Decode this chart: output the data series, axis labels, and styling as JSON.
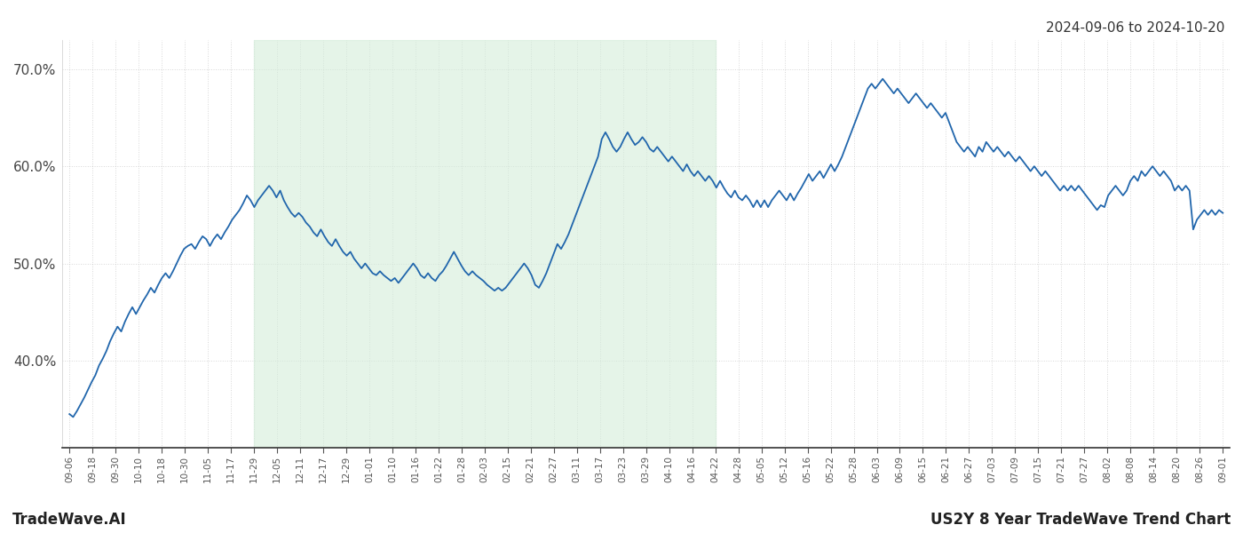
{
  "title_top_right": "2024-09-06 to 2024-10-20",
  "title_bottom_left": "TradeWave.AI",
  "title_bottom_right": "US2Y 8 Year TradeWave Trend Chart",
  "line_color": "#2166ac",
  "line_width": 1.3,
  "highlight_color": "#d4edda",
  "highlight_alpha": 0.6,
  "highlight_x_start": 8,
  "highlight_x_end": 28,
  "background_color": "#ffffff",
  "grid_color": "#b0b0b0",
  "grid_alpha": 0.5,
  "grid_linestyle": ":",
  "ylim": [
    31,
    73
  ],
  "ytick_labels": [
    "40.0%",
    "50.0%",
    "60.0%",
    "70.0%"
  ],
  "ytick_values": [
    40,
    50,
    60,
    70
  ],
  "x_labels": [
    "09-06",
    "09-18",
    "09-30",
    "10-10",
    "10-18",
    "10-30",
    "11-05",
    "11-17",
    "11-29",
    "12-05",
    "12-11",
    "12-17",
    "12-29",
    "01-01",
    "01-10",
    "01-16",
    "01-22",
    "01-28",
    "02-03",
    "02-15",
    "02-21",
    "02-27",
    "03-11",
    "03-17",
    "03-23",
    "03-29",
    "04-10",
    "04-16",
    "04-22",
    "04-28",
    "05-05",
    "05-12",
    "05-16",
    "05-22",
    "05-28",
    "06-03",
    "06-09",
    "06-15",
    "06-21",
    "06-27",
    "07-03",
    "07-09",
    "07-15",
    "07-21",
    "07-27",
    "08-02",
    "08-08",
    "08-14",
    "08-20",
    "08-26",
    "09-01"
  ],
  "x_tick_indices": [
    0,
    1,
    2,
    3,
    4,
    5,
    6,
    7,
    8,
    9,
    10,
    11,
    12,
    13,
    14,
    15,
    16,
    17,
    18,
    19,
    20,
    21,
    22,
    23,
    24,
    25,
    26,
    27,
    28,
    29,
    30,
    31,
    32,
    33,
    34,
    35,
    36,
    37,
    38,
    39,
    40,
    41,
    42,
    43,
    44,
    45,
    46,
    47,
    48,
    49,
    50
  ],
  "y_values": [
    34.5,
    34.2,
    34.8,
    35.5,
    36.2,
    37.0,
    37.8,
    38.5,
    39.5,
    40.2,
    41.0,
    42.0,
    42.8,
    43.5,
    43.0,
    44.0,
    44.8,
    45.5,
    44.8,
    45.5,
    46.2,
    46.8,
    47.5,
    47.0,
    47.8,
    48.5,
    49.0,
    48.5,
    49.2,
    50.0,
    50.8,
    51.5,
    51.8,
    52.0,
    51.5,
    52.2,
    52.8,
    52.5,
    51.8,
    52.5,
    53.0,
    52.5,
    53.2,
    53.8,
    54.5,
    55.0,
    55.5,
    56.2,
    57.0,
    56.5,
    55.8,
    56.5,
    57.0,
    57.5,
    58.0,
    57.5,
    56.8,
    57.5,
    56.5,
    55.8,
    55.2,
    54.8,
    55.2,
    54.8,
    54.2,
    53.8,
    53.2,
    52.8,
    53.5,
    52.8,
    52.2,
    51.8,
    52.5,
    51.8,
    51.2,
    50.8,
    51.2,
    50.5,
    50.0,
    49.5,
    50.0,
    49.5,
    49.0,
    48.8,
    49.2,
    48.8,
    48.5,
    48.2,
    48.5,
    48.0,
    48.5,
    49.0,
    49.5,
    50.0,
    49.5,
    48.8,
    48.5,
    49.0,
    48.5,
    48.2,
    48.8,
    49.2,
    49.8,
    50.5,
    51.2,
    50.5,
    49.8,
    49.2,
    48.8,
    49.2,
    48.8,
    48.5,
    48.2,
    47.8,
    47.5,
    47.2,
    47.5,
    47.2,
    47.5,
    48.0,
    48.5,
    49.0,
    49.5,
    50.0,
    49.5,
    48.8,
    47.8,
    47.5,
    48.2,
    49.0,
    50.0,
    51.0,
    52.0,
    51.5,
    52.2,
    53.0,
    54.0,
    55.0,
    56.0,
    57.0,
    58.0,
    59.0,
    60.0,
    61.0,
    62.8,
    63.5,
    62.8,
    62.0,
    61.5,
    62.0,
    62.8,
    63.5,
    62.8,
    62.2,
    62.5,
    63.0,
    62.5,
    61.8,
    61.5,
    62.0,
    61.5,
    61.0,
    60.5,
    61.0,
    60.5,
    60.0,
    59.5,
    60.2,
    59.5,
    59.0,
    59.5,
    59.0,
    58.5,
    59.0,
    58.5,
    57.8,
    58.5,
    57.8,
    57.2,
    56.8,
    57.5,
    56.8,
    56.5,
    57.0,
    56.5,
    55.8,
    56.5,
    55.8,
    56.5,
    55.8,
    56.5,
    57.0,
    57.5,
    57.0,
    56.5,
    57.2,
    56.5,
    57.2,
    57.8,
    58.5,
    59.2,
    58.5,
    59.0,
    59.5,
    58.8,
    59.5,
    60.2,
    59.5,
    60.2,
    61.0,
    62.0,
    63.0,
    64.0,
    65.0,
    66.0,
    67.0,
    68.0,
    68.5,
    68.0,
    68.5,
    69.0,
    68.5,
    68.0,
    67.5,
    68.0,
    67.5,
    67.0,
    66.5,
    67.0,
    67.5,
    67.0,
    66.5,
    66.0,
    66.5,
    66.0,
    65.5,
    65.0,
    65.5,
    64.5,
    63.5,
    62.5,
    62.0,
    61.5,
    62.0,
    61.5,
    61.0,
    62.0,
    61.5,
    62.5,
    62.0,
    61.5,
    62.0,
    61.5,
    61.0,
    61.5,
    61.0,
    60.5,
    61.0,
    60.5,
    60.0,
    59.5,
    60.0,
    59.5,
    59.0,
    59.5,
    59.0,
    58.5,
    58.0,
    57.5,
    58.0,
    57.5,
    58.0,
    57.5,
    58.0,
    57.5,
    57.0,
    56.5,
    56.0,
    55.5,
    56.0,
    55.8,
    57.0,
    57.5,
    58.0,
    57.5,
    57.0,
    57.5,
    58.5,
    59.0,
    58.5,
    59.5,
    59.0,
    59.5,
    60.0,
    59.5,
    59.0,
    59.5,
    59.0,
    58.5,
    57.5,
    58.0,
    57.5,
    58.0,
    57.5,
    53.5,
    54.5,
    55.0,
    55.5,
    55.0,
    55.5,
    55.0,
    55.5,
    55.2
  ]
}
